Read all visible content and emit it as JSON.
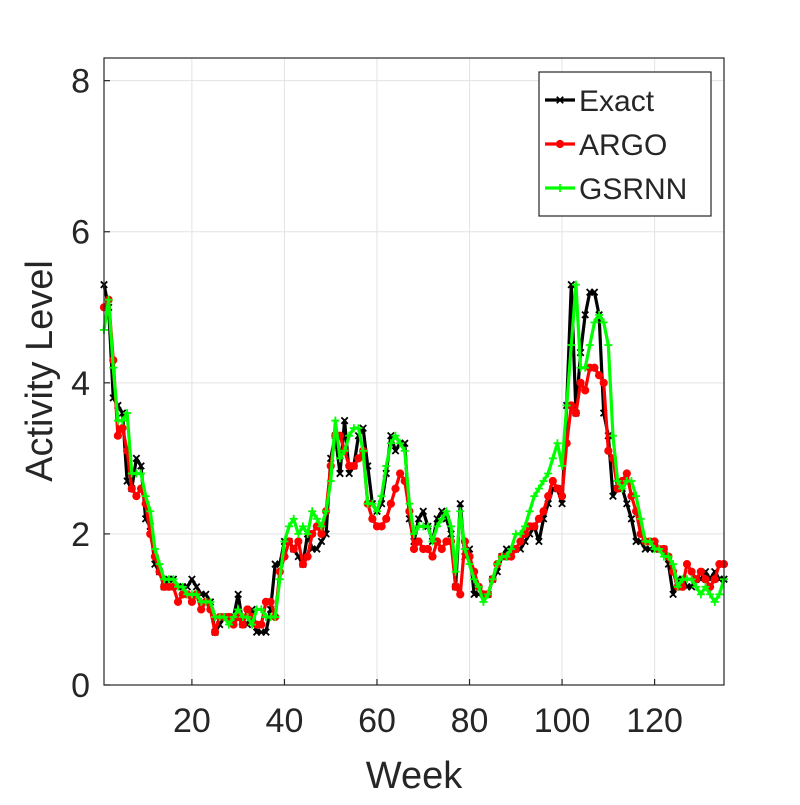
{
  "chart_data": {
    "type": "line",
    "title": "",
    "xlabel": "Week",
    "ylabel": "Activity Level",
    "xlim": [
      1,
      135
    ],
    "ylim": [
      0,
      8.3
    ],
    "xticks": [
      20,
      40,
      60,
      80,
      100,
      120
    ],
    "yticks": [
      0,
      2,
      4,
      6,
      8
    ],
    "grid": true,
    "legend_position": "top-right",
    "series": [
      {
        "name": "Exact",
        "color": "#000000",
        "marker": "x",
        "values": [
          5.3,
          5.0,
          3.8,
          3.7,
          3.6,
          2.7,
          2.6,
          3.0,
          2.9,
          2.2,
          2.1,
          1.6,
          1.5,
          1.3,
          1.4,
          1.4,
          1.3,
          1.3,
          1.3,
          1.4,
          1.3,
          1.2,
          1.2,
          1.1,
          0.7,
          0.8,
          0.9,
          0.9,
          0.9,
          1.2,
          0.8,
          0.8,
          1.0,
          0.7,
          0.7,
          0.7,
          1.0,
          1.6,
          1.6,
          1.9,
          1.9,
          1.8,
          1.7,
          1.6,
          2.0,
          1.8,
          1.8,
          1.9,
          2.0,
          3.0,
          3.3,
          2.8,
          3.5,
          2.8,
          2.9,
          3.3,
          3.4,
          2.9,
          2.4,
          2.3,
          2.4,
          2.8,
          3.3,
          3.1,
          3.2,
          3.2,
          2.2,
          1.9,
          2.2,
          2.3,
          2.1,
          1.9,
          2.2,
          2.3,
          2.2,
          2.0,
          1.3,
          2.4,
          1.7,
          1.8,
          1.2,
          1.2,
          1.2,
          1.2,
          1.4,
          1.5,
          1.7,
          1.8,
          1.8,
          1.8,
          1.8,
          1.9,
          2.0,
          2.1,
          1.9,
          2.2,
          2.4,
          2.6,
          2.6,
          2.4,
          3.7,
          5.3,
          3.6,
          4.4,
          4.9,
          5.2,
          5.2,
          4.9,
          3.6,
          3.3,
          2.5,
          2.6,
          2.6,
          2.4,
          2.2,
          1.9,
          1.9,
          1.8,
          1.8,
          1.8,
          1.8,
          1.8,
          1.6,
          1.2,
          1.4,
          1.4,
          1.3,
          1.3,
          1.4,
          1.4,
          1.5,
          1.4,
          1.5,
          1.4,
          1.4
        ]
      },
      {
        "name": "ARGO",
        "color": "#ff0000",
        "marker": "circle",
        "values": [
          5.0,
          5.1,
          4.3,
          3.3,
          3.4,
          3.1,
          2.6,
          2.5,
          2.6,
          2.4,
          2.0,
          1.7,
          1.5,
          1.3,
          1.3,
          1.3,
          1.1,
          1.2,
          1.2,
          1.1,
          1.2,
          1.0,
          1.1,
          1.0,
          0.7,
          0.9,
          0.9,
          0.9,
          0.8,
          0.9,
          0.8,
          1.0,
          0.9,
          0.8,
          0.8,
          1.1,
          1.1,
          0.9,
          1.5,
          1.7,
          1.9,
          1.8,
          1.9,
          1.6,
          1.7,
          2.0,
          2.1,
          2.0,
          2.3,
          2.9,
          3.3,
          3.3,
          3.1,
          2.9,
          2.9,
          3.0,
          3.1,
          2.4,
          2.2,
          2.1,
          2.1,
          2.2,
          2.4,
          2.6,
          2.8,
          2.7,
          2.3,
          1.8,
          1.9,
          1.8,
          1.8,
          1.7,
          1.9,
          1.8,
          1.9,
          1.9,
          1.3,
          1.2,
          1.9,
          1.7,
          1.5,
          1.3,
          1.2,
          1.2,
          1.4,
          1.6,
          1.7,
          1.7,
          1.7,
          1.8,
          1.9,
          2.0,
          2.1,
          2.1,
          2.2,
          2.3,
          2.5,
          2.7,
          2.6,
          2.5,
          3.2,
          3.7,
          3.6,
          4.0,
          3.9,
          4.2,
          4.2,
          4.1,
          4.0,
          3.1,
          3.0,
          2.6,
          2.7,
          2.8,
          2.5,
          2.3,
          2.0,
          1.9,
          1.9,
          1.9,
          1.8,
          1.8,
          1.7,
          1.5,
          1.3,
          1.3,
          1.6,
          1.5,
          1.4,
          1.5,
          1.4,
          1.3,
          1.4,
          1.6,
          1.6
        ]
      },
      {
        "name": "GSRNN",
        "color": "#00ff00",
        "marker": "plus",
        "values": [
          4.7,
          5.1,
          4.2,
          3.5,
          3.5,
          3.6,
          2.8,
          2.8,
          2.8,
          2.5,
          2.3,
          1.8,
          1.6,
          1.4,
          1.4,
          1.4,
          1.3,
          1.3,
          1.2,
          1.2,
          1.2,
          1.1,
          1.1,
          1.1,
          0.9,
          0.9,
          0.9,
          0.8,
          0.9,
          1.0,
          0.9,
          0.9,
          0.8,
          1.0,
          1.0,
          0.9,
          0.9,
          0.9,
          1.4,
          1.9,
          2.1,
          2.2,
          2.0,
          2.1,
          2.0,
          2.3,
          2.2,
          2.1,
          2.3,
          2.7,
          3.5,
          3.0,
          3.1,
          3.3,
          3.4,
          3.4,
          3.1,
          2.4,
          2.4,
          2.3,
          2.5,
          2.9,
          3.2,
          3.3,
          3.2,
          3.1,
          2.4,
          2.0,
          2.1,
          2.1,
          2.1,
          1.9,
          2.1,
          2.2,
          2.3,
          2.1,
          1.5,
          2.3,
          1.8,
          1.6,
          1.4,
          1.3,
          1.1,
          1.2,
          1.4,
          1.6,
          1.7,
          1.7,
          1.8,
          2.0,
          2.0,
          2.1,
          2.3,
          2.5,
          2.6,
          2.7,
          2.8,
          3.0,
          3.2,
          2.9,
          3.7,
          4.5,
          5.3,
          4.2,
          4.2,
          4.5,
          4.8,
          4.9,
          4.8,
          4.5,
          3.3,
          2.7,
          2.6,
          2.7,
          2.7,
          2.5,
          2.2,
          1.9,
          1.9,
          1.8,
          1.8,
          1.7,
          1.7,
          1.6,
          1.3,
          1.4,
          1.4,
          1.4,
          1.3,
          1.2,
          1.3,
          1.2,
          1.1,
          1.2,
          1.4
        ]
      }
    ]
  }
}
